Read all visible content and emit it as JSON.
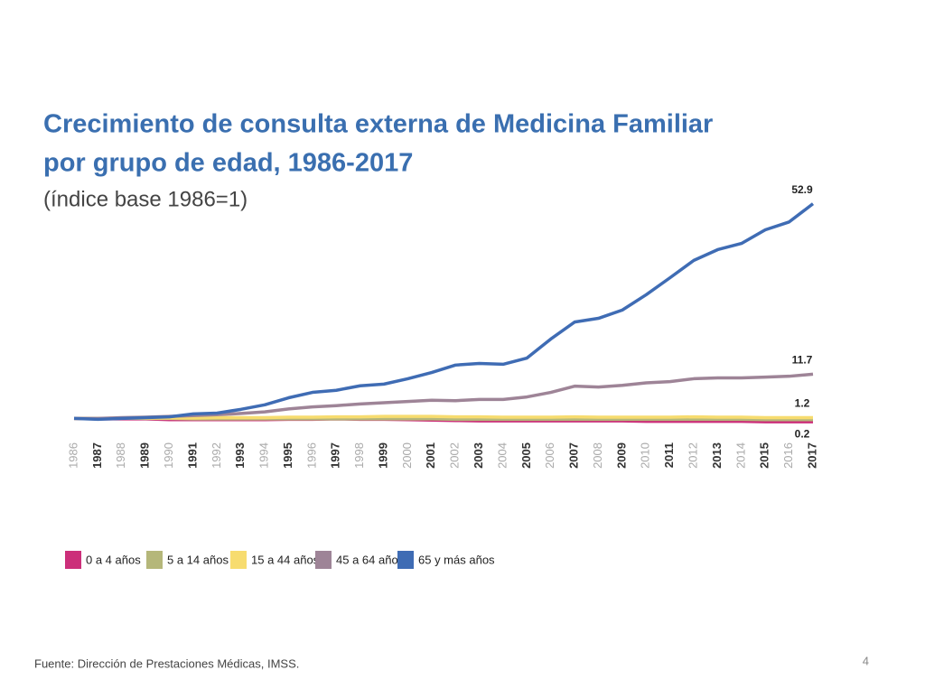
{
  "chart_data": {
    "type": "line",
    "title": [
      "Crecimiento de consulta externa de Medicina Familiar",
      "por grupo de edad, 1986-2017"
    ],
    "subtitle": "(índice base 1986=1)",
    "categories": [
      "1986",
      "1987",
      "1988",
      "1989",
      "1990",
      "1991",
      "1992",
      "1993",
      "1994",
      "1995",
      "1996",
      "1997",
      "1998",
      "1999",
      "2000",
      "2001",
      "2002",
      "2003",
      "2004",
      "2005",
      "2006",
      "2007",
      "2008",
      "2009",
      "2010",
      "2011",
      "2012",
      "2013",
      "2014",
      "2015",
      "2016",
      "2017"
    ],
    "ylim": [
      0,
      55
    ],
    "series": [
      {
        "name": "0 a 4 años",
        "color": "#cc2f7a",
        "values": [
          1.0,
          0.9,
          0.9,
          0.9,
          0.7,
          0.7,
          0.7,
          0.7,
          0.7,
          0.8,
          0.8,
          0.9,
          0.8,
          0.8,
          0.7,
          0.6,
          0.5,
          0.4,
          0.4,
          0.4,
          0.4,
          0.4,
          0.4,
          0.4,
          0.3,
          0.3,
          0.3,
          0.3,
          0.3,
          0.2,
          0.2,
          0.2
        ]
      },
      {
        "name": "5 a 14 años",
        "color": "#b5b77a",
        "values": [
          1.0,
          1.0,
          1.1,
          1.0,
          1.0,
          0.9,
          0.9,
          0.9,
          0.9,
          0.9,
          0.9,
          0.9,
          0.9,
          0.9,
          0.9,
          0.9,
          0.8,
          0.8,
          0.8,
          0.8,
          0.8,
          0.8,
          0.8,
          0.8,
          0.8,
          0.8,
          0.8,
          0.8,
          0.8,
          0.7,
          0.7,
          0.7
        ]
      },
      {
        "name": "15 a 44 años",
        "color": "#f7dc6f",
        "values": [
          1.0,
          1.0,
          1.1,
          1.1,
          1.1,
          1.1,
          1.2,
          1.2,
          1.2,
          1.3,
          1.3,
          1.4,
          1.4,
          1.5,
          1.5,
          1.5,
          1.4,
          1.4,
          1.3,
          1.3,
          1.3,
          1.4,
          1.3,
          1.3,
          1.3,
          1.3,
          1.4,
          1.3,
          1.3,
          1.2,
          1.2,
          1.2
        ]
      },
      {
        "name": "45 a 64 años",
        "color": "#9e8497",
        "values": [
          1.0,
          1.0,
          1.2,
          1.3,
          1.5,
          1.7,
          1.9,
          2.2,
          2.6,
          3.3,
          3.8,
          4.1,
          4.5,
          4.8,
          5.1,
          5.4,
          5.3,
          5.6,
          5.6,
          6.2,
          7.3,
          8.8,
          8.6,
          9.0,
          9.6,
          9.9,
          10.6,
          10.8,
          10.8,
          11.0,
          11.2,
          11.7
        ]
      },
      {
        "name": "65 y más años",
        "color": "#3f6cb4",
        "values": [
          1.0,
          0.8,
          1.0,
          1.2,
          1.4,
          2.1,
          2.3,
          3.2,
          4.3,
          6.0,
          7.3,
          7.8,
          8.9,
          9.3,
          10.6,
          12.1,
          13.9,
          14.3,
          14.1,
          15.6,
          20.2,
          24.3,
          25.2,
          27.2,
          30.9,
          35.0,
          39.2,
          41.8,
          43.3,
          46.6,
          48.5,
          52.9
        ]
      }
    ]
  },
  "source": "Fuente: Dirección de Prestaciones Médicas, IMSS.",
  "page_number": "4"
}
